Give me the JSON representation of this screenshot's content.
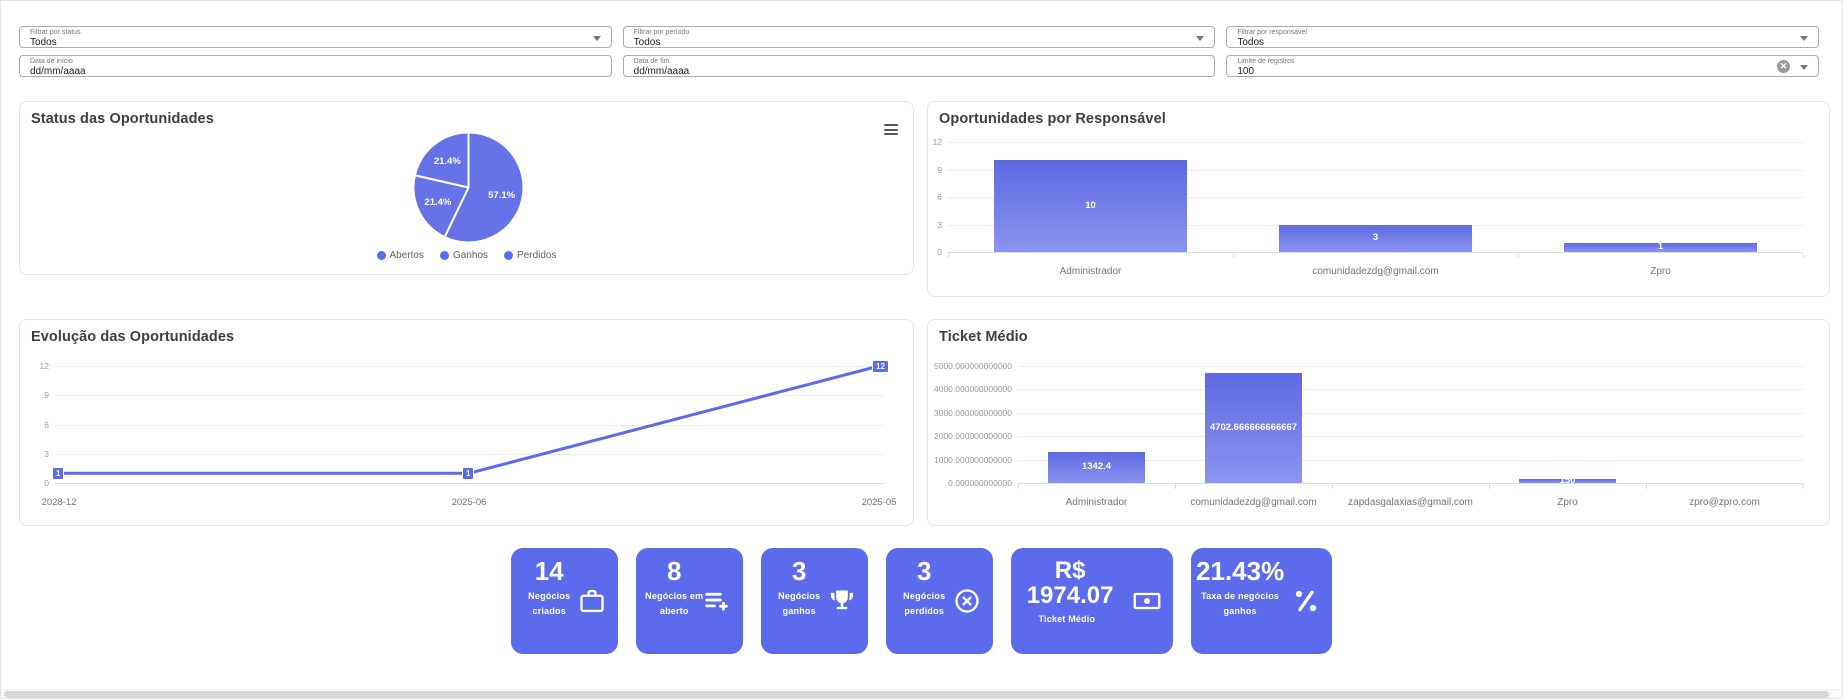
{
  "colors": {
    "accent": "#5C6BEC",
    "bar_gradient_top": "#5D69E3",
    "bar_gradient_bottom": "#8B94F0",
    "pie_fill": "#6673E8",
    "grid_line": "#ECECEC",
    "axis_text": "#979797",
    "title_text": "#3E3E3E"
  },
  "filters": {
    "status": {
      "label": "Filtrar por status",
      "value": "Todos"
    },
    "period": {
      "label": "Filtrar por período",
      "value": "Todos"
    },
    "responsible": {
      "label": "Filtrar por responsável",
      "value": "Todos"
    },
    "start_date": {
      "label": "Data de início",
      "value": "dd/mm/aaaa"
    },
    "end_date": {
      "label": "Data de fim",
      "value": "dd/mm/aaaa"
    },
    "limit": {
      "label": "Limite de registros",
      "value": "100"
    }
  },
  "chart_data": [
    {
      "id": "status_pie",
      "type": "pie",
      "title": "Status das Oportunidades",
      "labels": [
        "Abertos",
        "Ganhos",
        "Perdidos"
      ],
      "values": [
        57.1,
        21.4,
        21.4
      ],
      "value_labels": [
        "57.1%",
        "21.4%",
        "21.4%"
      ],
      "legend_position": "bottom"
    },
    {
      "id": "oportunidades_por_responsavel",
      "type": "bar",
      "title": "Oportunidades por Responsável",
      "categories": [
        "Administrador",
        "comunidadezdg@gmail.com",
        "Zpro"
      ],
      "values": [
        10,
        3,
        1
      ],
      "bar_labels": [
        "10",
        "3",
        "1"
      ],
      "ylim": [
        0,
        12
      ],
      "yticks": [
        0,
        3,
        6,
        9,
        12
      ],
      "grid": true
    },
    {
      "id": "evolucao_das_oportunidades",
      "type": "line",
      "title": "Evolução das Oportunidades",
      "x": [
        "2028-12",
        "2025-06",
        "2025-05"
      ],
      "values": [
        1,
        1,
        12
      ],
      "point_labels": [
        "1",
        "1",
        "12"
      ],
      "ylim": [
        0,
        12
      ],
      "yticks": [
        0,
        3,
        6,
        9,
        12
      ],
      "grid": true
    },
    {
      "id": "ticket_medio",
      "type": "bar",
      "title": "Ticket Médio",
      "categories": [
        "Administrador",
        "comunidadezdg@gmail.com",
        "zapdasgalaxias@gmail.com",
        "Zpro",
        "zpro@zpro.com"
      ],
      "values": [
        1342.4,
        4702.666666666667,
        0,
        150,
        0
      ],
      "bar_labels": [
        "1342.4",
        "4702.666666666667",
        "",
        "150",
        ""
      ],
      "ylim": [
        0,
        5000
      ],
      "yticks": [
        0,
        1000,
        2000,
        3000,
        4000,
        5000
      ],
      "ytick_labels": [
        "0.000000000000",
        "1000.000000000000",
        "2000.000000000000",
        "3000.000000000000",
        "4000.000000000000",
        "5000.000000000000"
      ],
      "grid": true
    }
  ],
  "stat_cards": [
    {
      "value": "14",
      "label": "Negócios criados",
      "icon": "briefcase-icon"
    },
    {
      "value": "8",
      "label": "Negócios em aberto",
      "icon": "playlist-add-icon"
    },
    {
      "value": "3",
      "label": "Negócios ganhos",
      "icon": "trophy-icon"
    },
    {
      "value": "3",
      "label": "Negócios perdidos",
      "icon": "cancel-icon"
    },
    {
      "value": "R$ 1974.07",
      "label": "Ticket Médio",
      "icon": "money-icon"
    },
    {
      "value": "21.43%",
      "label": "Taxa de negócios ganhos",
      "icon": "percent-icon"
    }
  ]
}
